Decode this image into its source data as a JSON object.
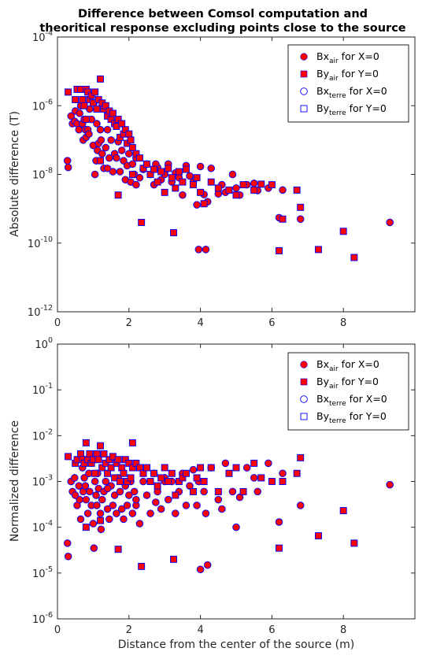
{
  "colors": {
    "fill": "#ff0000",
    "edge": "#0000ff",
    "axis": "#262626"
  },
  "legend_symbols": [
    "filled-circle",
    "filled-square",
    "open-circle",
    "open-square"
  ],
  "chart_data": [
    {
      "type": "scatter",
      "title": [
        "Difference between Comsol computation and",
        "theoritical response excluding points close to the source"
      ],
      "xlabel": "",
      "ylabel": "Absolute difference (T)",
      "xlim": [
        0,
        10
      ],
      "ylim": [
        1e-12,
        0.0001
      ],
      "yscale": "log",
      "x_ticks": [
        "0",
        "2",
        "4",
        "6",
        "8"
      ],
      "y_ticks": [
        "-12",
        "-10",
        "-8",
        "-6",
        "-4"
      ],
      "y_tick_base": "10",
      "legend_position": "top-right",
      "legend": [
        {
          "base": "Bx",
          "sub": "air",
          "rest": " for X=0"
        },
        {
          "base": "By",
          "sub": "air",
          "rest": " for Y=0"
        },
        {
          "base": "Bx",
          "sub": "terre",
          "rest": " for X=0"
        },
        {
          "base": "By",
          "sub": "terre",
          "rest": " for Y=0"
        }
      ],
      "series": [
        {
          "marker": "circle",
          "x": [
            0.28,
            0.3,
            0.38,
            0.42,
            0.48,
            0.5,
            0.55,
            0.6,
            0.62,
            0.65,
            0.7,
            0.72,
            0.75,
            0.78,
            0.8,
            0.85,
            0.88,
            0.9,
            0.95,
            1.0,
            1.02,
            1.05,
            1.08,
            1.1,
            1.12,
            1.15,
            1.2,
            1.22,
            1.25,
            1.3,
            1.35,
            1.4,
            1.45,
            1.5,
            1.55,
            1.6,
            1.65,
            1.7,
            1.75,
            1.8,
            1.85,
            1.9,
            1.95,
            2.0,
            2.05,
            2.1,
            2.15,
            2.2,
            2.3,
            2.4,
            2.5,
            2.6,
            2.7,
            2.8,
            2.9,
            3.0,
            3.1,
            3.2,
            3.3,
            3.4,
            3.5,
            3.6,
            3.7,
            3.8,
            3.9,
            4.0,
            4.1,
            4.2,
            4.3,
            4.5,
            4.7,
            4.9,
            5.0,
            5.3,
            5.5,
            5.6,
            5.9,
            6.2,
            6.3,
            6.8,
            9.3,
            3.95,
            4.15,
            2.75,
            1.4,
            2.2,
            3.0,
            5.1,
            4.6
          ],
          "y": [
            2.5e-08,
            1.6e-08,
            5e-07,
            3e-07,
            3.5e-07,
            7e-07,
            3e-07,
            2e-07,
            6e-07,
            1e-06,
            3e-07,
            1e-07,
            4e-07,
            2e-07,
            1.2e-07,
            2e-07,
            1.5e-07,
            8e-07,
            4e-07,
            7e-08,
            1.2e-06,
            1e-08,
            2.5e-08,
            3e-07,
            5e-08,
            8e-08,
            2e-07,
            1e-07,
            4e-08,
            1.5e-08,
            6e-08,
            2e-07,
            3e-08,
            1e-07,
            1.2e-08,
            4e-08,
            3e-08,
            9e-08,
            1.2e-08,
            5e-08,
            2.5e-08,
            7e-09,
            1.8e-08,
            4e-08,
            6e-09,
            2e-08,
            1e-08,
            5e-09,
            8e-09,
            1.4e-08,
            2e-08,
            1e-08,
            5e-09,
            1.6e-08,
            7e-09,
            1.2e-08,
            2e-08,
            6e-09,
            1.1e-08,
            8e-09,
            2.5e-09,
            1.8e-08,
            9e-09,
            6e-09,
            1.3e-09,
            1.7e-08,
            2.6e-09,
            1.6e-09,
            1.5e-08,
            2.7e-09,
            3e-09,
            1e-08,
            4e-09,
            5e-09,
            5.5e-09,
            3.4e-09,
            4e-09,
            5.5e-10,
            3.5e-09,
            5e-10,
            4e-10,
            6.5e-11,
            6.5e-11,
            2e-08,
            1.5e-08,
            3e-08,
            1e-08,
            2.5e-09,
            5e-09
          ]
        },
        {
          "marker": "square",
          "x": [
            0.3,
            0.5,
            0.55,
            0.65,
            0.7,
            0.75,
            0.8,
            0.85,
            0.9,
            0.95,
            1.0,
            1.05,
            1.1,
            1.15,
            1.2,
            1.25,
            1.3,
            1.35,
            1.4,
            1.45,
            1.5,
            1.55,
            1.6,
            1.65,
            1.7,
            1.75,
            1.8,
            1.85,
            1.9,
            1.95,
            2.0,
            2.05,
            2.1,
            2.2,
            2.3,
            2.4,
            2.5,
            2.6,
            2.7,
            2.8,
            2.9,
            3.0,
            3.1,
            3.2,
            3.3,
            3.4,
            3.5,
            3.6,
            3.8,
            3.9,
            4.0,
            4.1,
            4.3,
            4.5,
            4.8,
            5.0,
            5.2,
            5.5,
            5.7,
            6.0,
            6.2,
            6.3,
            6.7,
            6.8,
            7.3,
            8.0,
            8.3,
            1.7,
            2.35,
            3.25,
            1.2,
            0.8,
            2.1
          ],
          "y": [
            2.5e-06,
            1.5e-06,
            3e-06,
            3e-06,
            1.5e-06,
            1e-06,
            3e-06,
            2.5e-06,
            1.5e-06,
            2e-06,
            1.2e-06,
            2.5e-06,
            8e-07,
            1.5e-06,
            6e-06,
            1.2e-06,
            8e-07,
            1e-06,
            5e-07,
            7e-07,
            4e-07,
            6e-07,
            3e-07,
            2.5e-07,
            4e-07,
            1.2e-07,
            3e-07,
            1.5e-07,
            2e-07,
            8e-08,
            1.5e-07,
            1e-07,
            6e-08,
            4e-08,
            3e-08,
            1.5e-08,
            2e-08,
            1e-08,
            1.4e-08,
            6e-09,
            1.2e-08,
            3e-09,
            1.5e-08,
            8e-09,
            4e-09,
            1.2e-08,
            6e-09,
            1.4e-08,
            5e-09,
            8e-09,
            3e-09,
            1.4e-09,
            6e-09,
            4e-09,
            3.5e-09,
            2.5e-09,
            5e-09,
            3.5e-09,
            5.2e-09,
            5e-09,
            6e-11,
            5e-10,
            3.5e-09,
            1.1e-09,
            6.5e-11,
            2.2e-10,
            3.8e-11,
            2.5e-09,
            4e-10,
            2e-10,
            2.5e-08,
            4e-07,
            1e-08
          ]
        }
      ]
    },
    {
      "type": "scatter",
      "xlabel": "Distance from the center of the source (m)",
      "ylabel": "Normalized difference",
      "xlim": [
        0,
        10
      ],
      "ylim": [
        1e-06,
        1
      ],
      "yscale": "log",
      "x_ticks": [
        "0",
        "2",
        "4",
        "6",
        "8"
      ],
      "y_ticks": [
        "-6",
        "-5",
        "-4",
        "-3",
        "-2",
        "-1",
        "0"
      ],
      "y_tick_base": "10",
      "legend_position": "top-right",
      "legend": [
        {
          "base": "Bx",
          "sub": "air",
          "rest": " for X=0"
        },
        {
          "base": "By",
          "sub": "air",
          "rest": " for Y=0"
        },
        {
          "base": "Bx",
          "sub": "terre",
          "rest": " for X=0"
        },
        {
          "base": "By",
          "sub": "terre",
          "rest": " for Y=0"
        }
      ],
      "series": [
        {
          "marker": "circle",
          "x": [
            0.28,
            0.3,
            0.38,
            0.42,
            0.48,
            0.5,
            0.55,
            0.6,
            0.62,
            0.65,
            0.7,
            0.72,
            0.75,
            0.78,
            0.8,
            0.85,
            0.88,
            0.9,
            0.95,
            1.0,
            1.02,
            1.05,
            1.08,
            1.1,
            1.12,
            1.15,
            1.2,
            1.22,
            1.25,
            1.3,
            1.35,
            1.4,
            1.45,
            1.5,
            1.55,
            1.6,
            1.65,
            1.7,
            1.75,
            1.8,
            1.85,
            1.9,
            1.95,
            2.0,
            2.05,
            2.1,
            2.15,
            2.2,
            2.3,
            2.4,
            2.5,
            2.6,
            2.7,
            2.8,
            2.9,
            3.0,
            3.1,
            3.2,
            3.3,
            3.4,
            3.5,
            3.6,
            3.7,
            3.8,
            3.9,
            4.0,
            4.1,
            4.2,
            4.3,
            4.5,
            4.7,
            4.9,
            5.0,
            5.3,
            5.5,
            5.6,
            5.9,
            6.2,
            6.3,
            6.8,
            9.3,
            3.95,
            4.15,
            2.75,
            1.4,
            2.2,
            3.0,
            5.1,
            4.6
          ],
          "y": [
            4.5e-05,
            2.3e-05,
            0.001,
            0.0006,
            0.0012,
            0.0005,
            0.0003,
            0.0008,
            0.0004,
            0.00015,
            0.002,
            0.0006,
            0.0012,
            0.0008,
            0.0004,
            0.0002,
            0.0015,
            0.0006,
            0.0003,
            0.00012,
            3.5e-05,
            0.001,
            0.0005,
            0.0003,
            0.0015,
            0.0007,
            0.0002,
            9e-05,
            0.0004,
            0.0006,
            0.001,
            0.00025,
            0.00015,
            0.0008,
            0.0003,
            0.0005,
            0.0002,
            0.0012,
            0.0006,
            0.00025,
            0.00015,
            0.0008,
            0.0003,
            0.0005,
            0.001,
            0.0002,
            0.0006,
            0.0003,
            0.00012,
            0.001,
            0.0005,
            0.0002,
            0.0015,
            0.0006,
            0.00025,
            0.0012,
            0.0004,
            0.001,
            0.0002,
            0.0006,
            0.0015,
            0.0003,
            0.0008,
            0.0018,
            0.0003,
            1.2e-05,
            0.0006,
            1.5e-05,
            0.002,
            0.0004,
            0.0025,
            0.0006,
            0.0001,
            0.002,
            0.0012,
            0.0006,
            0.0025,
            0.00013,
            0.0015,
            0.0003,
            0.00085,
            0.001,
            0.0002,
            0.00035,
            0.0007,
            0.0004,
            0.001,
            0.00045,
            0.00025
          ]
        },
        {
          "marker": "square",
          "x": [
            0.3,
            0.5,
            0.55,
            0.65,
            0.7,
            0.75,
            0.8,
            0.85,
            0.9,
            0.95,
            1.0,
            1.05,
            1.1,
            1.15,
            1.2,
            1.25,
            1.3,
            1.35,
            1.4,
            1.45,
            1.5,
            1.55,
            1.6,
            1.65,
            1.7,
            1.75,
            1.8,
            1.85,
            1.9,
            1.95,
            2.0,
            2.05,
            2.1,
            2.2,
            2.3,
            2.4,
            2.5,
            2.6,
            2.7,
            2.8,
            2.9,
            3.0,
            3.1,
            3.2,
            3.3,
            3.4,
            3.5,
            3.6,
            3.8,
            3.9,
            4.0,
            4.1,
            4.3,
            4.5,
            4.8,
            5.0,
            5.2,
            5.5,
            5.7,
            6.0,
            6.2,
            6.3,
            6.7,
            6.8,
            7.3,
            8.0,
            8.3,
            1.7,
            2.35,
            3.25,
            1.2,
            0.8,
            2.1
          ],
          "y": [
            0.0035,
            0.0025,
            0.003,
            0.004,
            0.003,
            0.0025,
            0.007,
            0.003,
            0.004,
            0.0025,
            0.003,
            0.0015,
            0.004,
            0.003,
            0.006,
            0.002,
            0.004,
            0.0025,
            0.0015,
            0.003,
            0.002,
            0.0035,
            0.0012,
            0.0025,
            0.003,
            0.001,
            0.002,
            0.0015,
            0.003,
            0.001,
            0.0025,
            0.0012,
            0.002,
            0.0025,
            0.002,
            0.0015,
            0.002,
            0.001,
            0.0015,
            0.0008,
            0.0012,
            0.002,
            0.001,
            0.0015,
            0.0005,
            0.001,
            0.0012,
            0.0015,
            0.0006,
            0.0012,
            0.002,
            0.001,
            0.002,
            0.0006,
            0.0015,
            0.002,
            0.0006,
            0.0025,
            0.0012,
            0.001,
            3.5e-05,
            0.001,
            0.0015,
            0.0033,
            6.5e-05,
            0.00023,
            4.5e-05,
            3.3e-05,
            1.4e-05,
            2e-05,
            0.00014,
            0.0001,
            0.007
          ]
        }
      ]
    }
  ]
}
